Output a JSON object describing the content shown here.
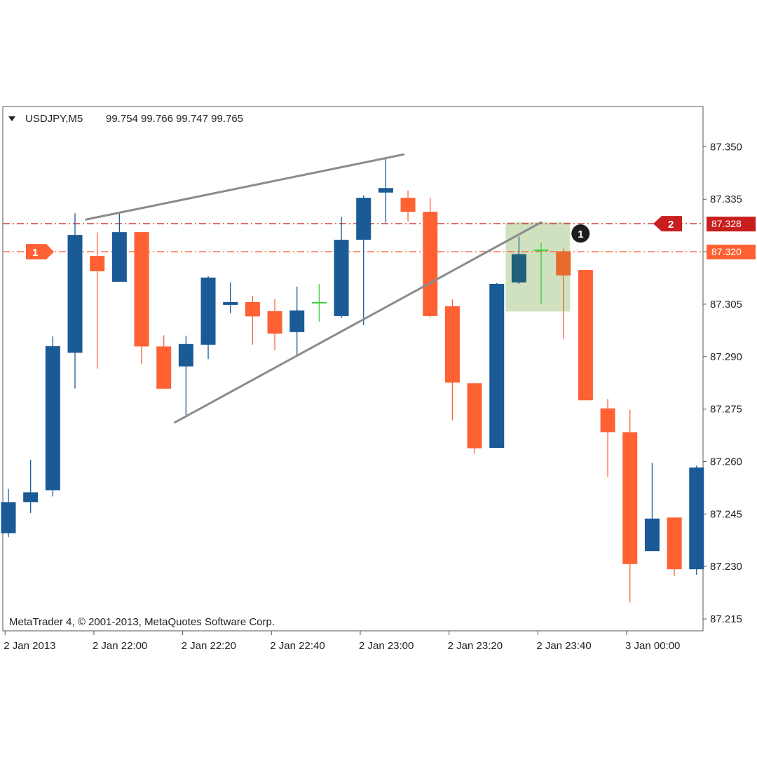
{
  "chart_data": {
    "type": "candlestick",
    "title": "USDJPY,M5  99.754 99.766 99.747 99.765",
    "symbol": "USDJPY,M5",
    "header_values": "99.754 99.766 99.747 99.765",
    "copyright": "MetaTrader 4, © 2001-2013, MetaQuotes Software Corp.",
    "y_ticks": [
      "87.350",
      "87.335",
      "87.320",
      "87.305",
      "87.290",
      "87.275",
      "87.260",
      "87.245",
      "87.230",
      "87.215"
    ],
    "y_tick_values": [
      87.35,
      87.335,
      87.32,
      87.305,
      87.29,
      87.275,
      87.26,
      87.245,
      87.23,
      87.215
    ],
    "ylim": [
      87.2116,
      87.3615
    ],
    "x_ticks": [
      "2 Jan 2013",
      "2 Jan 22:00",
      "2 Jan 22:20",
      "2 Jan 22:40",
      "2 Jan 23:00",
      "2 Jan 23:20",
      "2 Jan 23:40",
      "3 Jan 00:00"
    ],
    "x_tick_bars": [
      0,
      4,
      8,
      12,
      16,
      20,
      24,
      28
    ],
    "bullish_color": "#1a5a96",
    "bearish_color": "#ff6133",
    "candles": [
      {
        "open": 87.2395,
        "high": 87.2522,
        "low": 87.2384,
        "close": 87.2484
      },
      {
        "open": 87.2484,
        "high": 87.2605,
        "low": 87.2453,
        "close": 87.2512
      },
      {
        "open": 87.2518,
        "high": 87.2958,
        "low": 87.25,
        "close": 87.293
      },
      {
        "open": 87.2911,
        "high": 87.331,
        "low": 87.2809,
        "close": 87.3248
      },
      {
        "open": 87.3188,
        "high": 87.3255,
        "low": 87.2866,
        "close": 87.3144
      },
      {
        "open": 87.3114,
        "high": 87.3313,
        "low": 87.3114,
        "close": 87.3256
      },
      {
        "open": 87.3256,
        "high": 87.3256,
        "low": 87.2878,
        "close": 87.2929
      },
      {
        "open": 87.2929,
        "high": 87.2961,
        "low": 87.281,
        "close": 87.2808
      },
      {
        "open": 87.2872,
        "high": 87.296,
        "low": 87.2733,
        "close": 87.2936
      },
      {
        "open": 87.2934,
        "high": 87.313,
        "low": 87.2893,
        "close": 87.3126
      },
      {
        "open": 87.3048,
        "high": 87.3112,
        "low": 87.3024,
        "close": 87.3056
      },
      {
        "open": 87.3056,
        "high": 87.3074,
        "low": 87.2934,
        "close": 87.3015
      },
      {
        "open": 87.303,
        "high": 87.3064,
        "low": 87.2918,
        "close": 87.2966
      },
      {
        "open": 87.297,
        "high": 87.31,
        "low": 87.2905,
        "close": 87.3032
      },
      {
        "open": 87.3054,
        "high": 87.3108,
        "low": 87.3,
        "close": 87.3054
      },
      {
        "open": 87.3016,
        "high": 87.33,
        "low": 87.301,
        "close": 87.3234
      },
      {
        "open": 87.3234,
        "high": 87.3361,
        "low": 87.299,
        "close": 87.3354
      },
      {
        "open": 87.3369,
        "high": 87.3466,
        "low": 87.3283,
        "close": 87.3382
      },
      {
        "open": 87.3354,
        "high": 87.3375,
        "low": 87.3287,
        "close": 87.3314
      },
      {
        "open": 87.3314,
        "high": 87.3354,
        "low": 87.3012,
        "close": 87.3016
      },
      {
        "open": 87.3044,
        "high": 87.3064,
        "low": 87.2718,
        "close": 87.2826
      },
      {
        "open": 87.2824,
        "high": 87.2824,
        "low": 87.2622,
        "close": 87.2638
      },
      {
        "open": 87.2639,
        "high": 87.311,
        "low": 87.2639,
        "close": 87.3108
      },
      {
        "open": 87.3112,
        "high": 87.3243,
        "low": 87.3108,
        "close": 87.3193
      },
      {
        "open": 87.3204,
        "high": 87.3225,
        "low": 87.305,
        "close": 87.3204
      },
      {
        "open": 87.3201,
        "high": 87.3209,
        "low": 87.2951,
        "close": 87.3132
      },
      {
        "open": 87.3148,
        "high": 87.3148,
        "low": 87.2777,
        "close": 87.2775
      },
      {
        "open": 87.2752,
        "high": 87.2779,
        "low": 87.2556,
        "close": 87.2684
      },
      {
        "open": 87.2684,
        "high": 87.2748,
        "low": 87.2197,
        "close": 87.2307
      },
      {
        "open": 87.2344,
        "high": 87.2596,
        "low": 87.2347,
        "close": 87.2437
      },
      {
        "open": 87.244,
        "high": 87.244,
        "low": 87.2273,
        "close": 87.2292
      },
      {
        "open": 87.2292,
        "high": 87.2588,
        "low": 87.2276,
        "close": 87.2583
      }
    ],
    "trendlines": [
      {
        "from": {
          "bar": 3.5,
          "price": 87.3292
        },
        "to": {
          "bar": 17.8,
          "price": 87.3478
        }
      },
      {
        "from": {
          "bar": 7.5,
          "price": 87.2712
        },
        "to": {
          "bar": 24.0,
          "price": 87.3284
        }
      }
    ],
    "horizontal_levels": [
      {
        "price": 87.328,
        "label": "87.328",
        "marker": "2",
        "color": "#c81e1e",
        "tag_color": "#c81e1e"
      },
      {
        "price": 87.32,
        "label": "87.320",
        "marker": "1",
        "color": "#ff6133",
        "tag_color": "#ff6133"
      }
    ],
    "highlight_box": {
      "bar_from": 22.4,
      "bar_to": 25.3,
      "price_top": 87.3284,
      "price_bottom": 87.3029,
      "color": "#c8dcb4",
      "marker": "1"
    },
    "grid": false
  }
}
